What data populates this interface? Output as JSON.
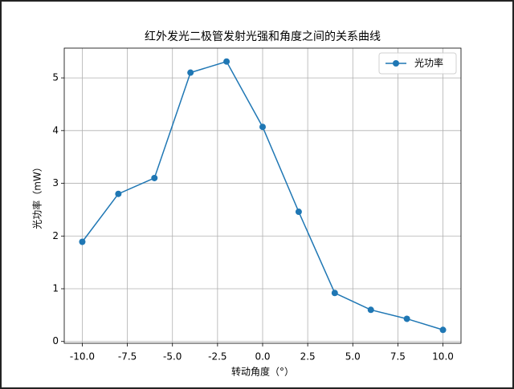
{
  "chart_data": {
    "type": "line",
    "title": "红外发光二极管发射光强和角度之间的关系曲线",
    "xlabel": "转动角度（°）",
    "ylabel": "光功率（mW）",
    "x": [
      -10,
      -8,
      -6,
      -4,
      -2,
      0,
      2,
      4,
      6,
      8,
      10
    ],
    "series": [
      {
        "name": "光功率",
        "color": "#1f77b4",
        "values": [
          1.89,
          2.8,
          3.1,
          5.1,
          5.31,
          4.07,
          2.46,
          0.92,
          0.6,
          0.43,
          0.22
        ]
      }
    ],
    "xlim": [
      -11,
      11
    ],
    "ylim": [
      -0.0345,
      5.5645
    ],
    "xticks": [
      {
        "value": -10,
        "label": "-10.0"
      },
      {
        "value": -7.5,
        "label": "-7.5"
      },
      {
        "value": -5,
        "label": "-5.0"
      },
      {
        "value": -2.5,
        "label": "-2.5"
      },
      {
        "value": 0,
        "label": "0.0"
      },
      {
        "value": 2.5,
        "label": "2.5"
      },
      {
        "value": 5,
        "label": "5.0"
      },
      {
        "value": 7.5,
        "label": "7.5"
      },
      {
        "value": 10,
        "label": "10.0"
      }
    ],
    "yticks": [
      0,
      1,
      2,
      3,
      4,
      5
    ],
    "grid": true,
    "legend": "upper right"
  }
}
